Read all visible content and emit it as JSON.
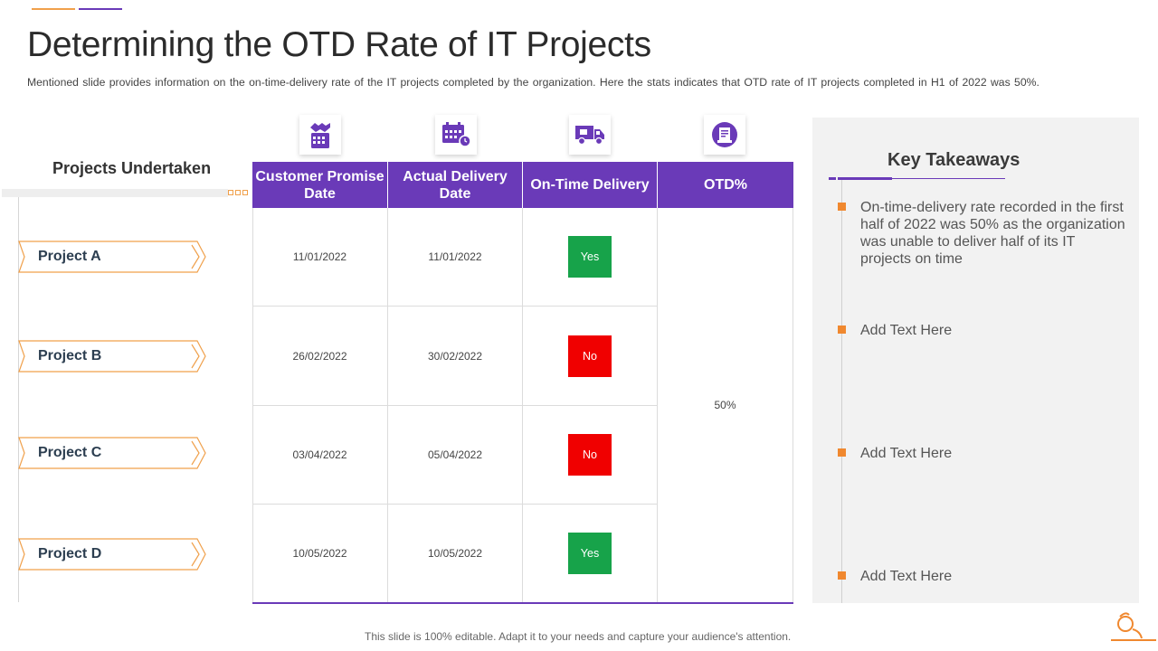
{
  "title": "Determining the OTD Rate of IT Projects",
  "subtitle": "Mentioned slide provides  information  on the on-time-delivery  rate of the IT  projects completed by the organization.  Here  the stats indicates that OTD  rate of IT projects completed in H1 of 2022 was 50%.",
  "projects": {
    "heading": "Projects Undertaken",
    "items": [
      "Project A",
      "Project B",
      "Project C",
      "Project D"
    ]
  },
  "icons": [
    "handshake-calendar-icon",
    "calendar-clock-icon",
    "delivery-truck-icon",
    "document-badge-icon"
  ],
  "table": {
    "headers": [
      "Customer Promise Date",
      "Actual Delivery Date",
      "On-Time Delivery",
      "OTD%"
    ],
    "rows": [
      {
        "promise": "11/01/2022",
        "actual": "11/01/2022",
        "ontime": "Yes"
      },
      {
        "promise": "26/02/2022",
        "actual": "30/02/2022",
        "ontime": "No"
      },
      {
        "promise": "03/04/2022",
        "actual": "05/04/2022",
        "ontime": "No"
      },
      {
        "promise": "10/05/2022",
        "actual": "10/05/2022",
        "ontime": "Yes"
      }
    ],
    "otd": "50%"
  },
  "takeaways": {
    "title": "Key Takeaways",
    "items": [
      "On-time-delivery rate recorded in the first half of 2022 was 50% as the organization was unable to deliver half of its IT projects on time",
      "Add Text Here",
      "Add Text Here",
      "Add Text Here"
    ]
  },
  "footer": "This slide is 100% editable. Adapt it to your needs and capture your audience's attention.",
  "colors": {
    "purple": "#6a3ab8",
    "orange": "#f0882f",
    "yes": "#17a34a",
    "no": "#f00000"
  }
}
